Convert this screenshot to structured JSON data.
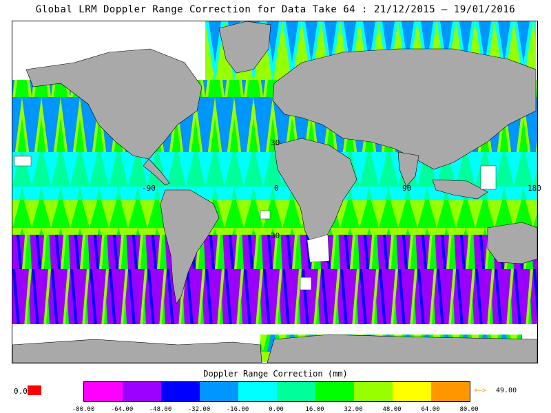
{
  "title": "Global LRM Doppler Range Correction for Data Take 64 : 21/12/2015 – 19/01/2016",
  "map": {
    "lon_labels": [
      "-90",
      "0",
      "90",
      "180"
    ],
    "lat_labels": [
      "30",
      "30"
    ],
    "land_color": "#a9a9a9",
    "ocean_color": "#ffffff"
  },
  "legend": {
    "title": "Doppler Range Correction (mm)",
    "ticks": [
      "-80.00",
      "-64.00",
      "-48.00",
      "-32.00",
      "-16.00",
      "0.00",
      "16.00",
      "32.00",
      "48.00",
      "64.00",
      "80.00"
    ],
    "colors": [
      "#ff00ff",
      "#9b00ff",
      "#0000ff",
      "#0096ff",
      "#00ffff",
      "#00ff9b",
      "#00ff00",
      "#96ff00",
      "#ffff00",
      "#ff9600"
    ],
    "zero_label": "0.0",
    "zero_color": "#ff0000",
    "over_arrow": "+–>",
    "over_value": "49.00"
  },
  "chart_data": {
    "type": "heatmap",
    "title": "Global LRM Doppler Range Correction for Data Take 64 : 21/12/2015 – 19/01/2016",
    "colorbar_label": "Doppler Range Correction (mm)",
    "colorbar_range": [
      -80,
      80
    ],
    "colorbar_ticks": [
      -80,
      -64,
      -48,
      -32,
      -16,
      0,
      16,
      32,
      48,
      64,
      80
    ],
    "lon_range": [
      -180,
      180
    ],
    "lat_range": [
      -90,
      90
    ],
    "latitude_bands": [
      {
        "lat_range": [
          60,
          82
        ],
        "dominant": "32 to 48 / -32 to -16 (alternating tracks)"
      },
      {
        "lat_range": [
          30,
          60
        ],
        "dominant": "16 to 32 / -32 to -16 (alternating tracks)"
      },
      {
        "lat_range": [
          0,
          30
        ],
        "dominant": "-16 to 16"
      },
      {
        "lat_range": [
          -30,
          0
        ],
        "dominant": "32 to 48"
      },
      {
        "lat_range": [
          -65,
          -30
        ],
        "dominant": "-64 to -32 / 32 to 48 (alternating tracks)"
      },
      {
        "lat_range": [
          -82,
          -65
        ],
        "dominant": "-32 to 48 (Antarctic margin, sparse)"
      }
    ]
  }
}
